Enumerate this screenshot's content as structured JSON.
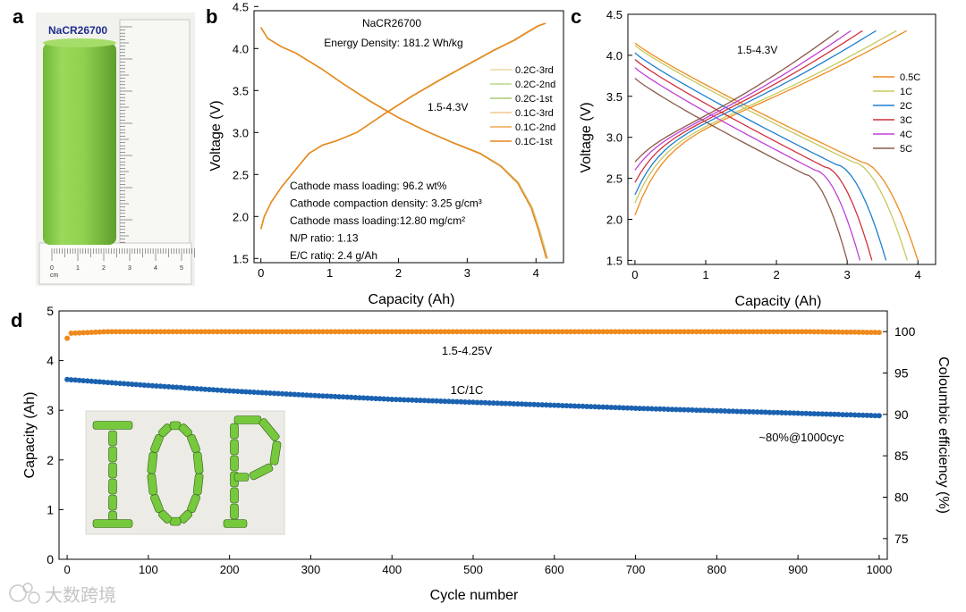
{
  "panel_labels": [
    "a",
    "b",
    "c",
    "d"
  ],
  "colors": {
    "cell_green": "#8fd14f",
    "cell_label_blue": "#1f2e8c",
    "orange": "#f08a1c",
    "blue": "#1a62b0"
  },
  "panel_a": {
    "cell_label": "NaCR26700",
    "ruler_unit": "cm",
    "ruler_ticks": [
      "0",
      "1",
      "2",
      "3",
      "4",
      "5"
    ]
  },
  "panel_d_inset": {
    "letters": "IOP"
  },
  "watermark": {
    "text": "大数跨境"
  },
  "chart_data": [
    {
      "id": "b",
      "type": "line",
      "title": "NaCR26700",
      "subtitle": "Energy Density: 181.2 Wh/kg",
      "xlabel": "Capacity (Ah)",
      "ylabel": "Voltage (V)",
      "xlim": [
        -0.1,
        4.4
      ],
      "ylim": [
        1.45,
        4.45
      ],
      "xticks": [
        0,
        1,
        2,
        3,
        4
      ],
      "yticks": [
        1.5,
        2.0,
        2.5,
        3.0,
        3.5,
        4.0,
        4.5
      ],
      "grid": false,
      "legend_position": "right",
      "voltage_window_label": "1.5-4.3V",
      "annotations": [
        "Cathode mass loading: 96.2 wt%",
        "Cathode compaction density: 3.25 g/cm³",
        "Cathode mass loading:12.80 mg/cm²",
        "N/P ratio: 1.13",
        "E/C ratio: 2.4 g/Ah"
      ],
      "charge_curve": {
        "x": [
          0,
          0.05,
          0.15,
          0.3,
          0.5,
          0.7,
          0.9,
          1.1,
          1.4,
          1.8,
          2.2,
          2.6,
          3.0,
          3.4,
          3.7,
          3.9,
          4.05,
          4.15
        ],
        "y": [
          1.85,
          2.0,
          2.17,
          2.35,
          2.55,
          2.75,
          2.85,
          2.9,
          3.0,
          3.22,
          3.43,
          3.62,
          3.8,
          3.98,
          4.1,
          4.2,
          4.27,
          4.3
        ]
      },
      "discharge_curve": {
        "x": [
          0,
          0.1,
          0.3,
          0.5,
          0.7,
          0.9,
          1.2,
          1.6,
          2.0,
          2.4,
          2.8,
          3.2,
          3.5,
          3.75,
          3.95,
          4.05,
          4.12,
          4.17
        ],
        "y": [
          4.25,
          4.12,
          4.02,
          3.95,
          3.85,
          3.75,
          3.58,
          3.37,
          3.18,
          3.02,
          2.88,
          2.75,
          2.6,
          2.4,
          2.1,
          1.85,
          1.65,
          1.5
        ]
      },
      "series": [
        {
          "name": "0.2C-3rd",
          "color": "#e8d8a0",
          "offset": 0.0
        },
        {
          "name": "0.2C-2nd",
          "color": "#b9d98c",
          "offset": 0.01
        },
        {
          "name": "0.2C-1st",
          "color": "#a9c979",
          "offset": 0.02
        },
        {
          "name": "0.1C-3rd",
          "color": "#f3c98c",
          "offset": 0.03
        },
        {
          "name": "0.1C-2nd",
          "color": "#f0a84e",
          "offset": 0.04
        },
        {
          "name": "0.1C-1st",
          "color": "#e8861e",
          "offset": 0.05
        }
      ]
    },
    {
      "id": "c",
      "type": "line",
      "xlabel": "Capacity (Ah)",
      "ylabel": "Voltage (V)",
      "xlim": [
        -0.1,
        4.25
      ],
      "ylim": [
        1.45,
        4.5
      ],
      "xticks": [
        0,
        1,
        2,
        3,
        4
      ],
      "yticks": [
        1.5,
        2.0,
        2.5,
        3.0,
        3.5,
        4.0,
        4.5
      ],
      "grid": false,
      "legend_position": "right",
      "voltage_window_label": "1.5-4.3V",
      "series": [
        {
          "name": "0.5C",
          "color": "#f08a1c",
          "capacity": 4.0,
          "charge_start": 2.05,
          "discharge_start": 4.15,
          "plateau": 2.7
        },
        {
          "name": "1C",
          "color": "#c8c860",
          "capacity": 3.85,
          "charge_start": 2.2,
          "discharge_start": 4.12,
          "plateau": 2.7
        },
        {
          "name": "2C",
          "color": "#1e7fd0",
          "capacity": 3.55,
          "charge_start": 2.3,
          "discharge_start": 4.03,
          "plateau": 2.67
        },
        {
          "name": "3C",
          "color": "#d0303c",
          "capacity": 3.35,
          "charge_start": 2.45,
          "discharge_start": 3.95,
          "plateau": 2.64
        },
        {
          "name": "4C",
          "color": "#c040d8",
          "capacity": 3.18,
          "charge_start": 2.6,
          "discharge_start": 3.85,
          "plateau": 2.6
        },
        {
          "name": "5C",
          "color": "#8a5a4a",
          "capacity": 3.0,
          "charge_start": 2.7,
          "discharge_start": 3.72,
          "plateau": 2.55
        }
      ]
    },
    {
      "id": "d",
      "type": "scatter",
      "xlabel": "Cycle number",
      "ylabel": "Capacity (Ah)",
      "ylabel_right": "Coloumbic efficiency (%)",
      "xlim": [
        -10,
        1010
      ],
      "ylim": [
        0,
        5
      ],
      "ylim_right": [
        72.5,
        102.5
      ],
      "xticks": [
        0,
        100,
        200,
        300,
        400,
        500,
        600,
        700,
        800,
        900,
        1000
      ],
      "yticks": [
        0,
        1,
        2,
        3,
        4,
        5
      ],
      "yticks_right": [
        75,
        80,
        85,
        90,
        95,
        100
      ],
      "grid": false,
      "annotations": [
        "1.5-4.25V",
        "1C/1C",
        "~80%@1000cyc"
      ],
      "series": [
        {
          "name": "Coulombic efficiency",
          "axis": "right",
          "color": "#f08a1c",
          "x": [
            1,
            5,
            50,
            100,
            200,
            300,
            400,
            500,
            600,
            700,
            800,
            900,
            1000
          ],
          "y": [
            99.2,
            99.8,
            100.0,
            100.0,
            100.0,
            100.0,
            100.0,
            100.0,
            100.0,
            100.0,
            100.0,
            100.0,
            99.9
          ]
        },
        {
          "name": "Capacity",
          "axis": "left",
          "color": "#1a62b0",
          "x": [
            0,
            100,
            200,
            300,
            400,
            500,
            600,
            700,
            800,
            900,
            1000
          ],
          "y": [
            3.62,
            3.5,
            3.39,
            3.3,
            3.22,
            3.16,
            3.1,
            3.04,
            2.99,
            2.94,
            2.89
          ]
        }
      ]
    }
  ]
}
